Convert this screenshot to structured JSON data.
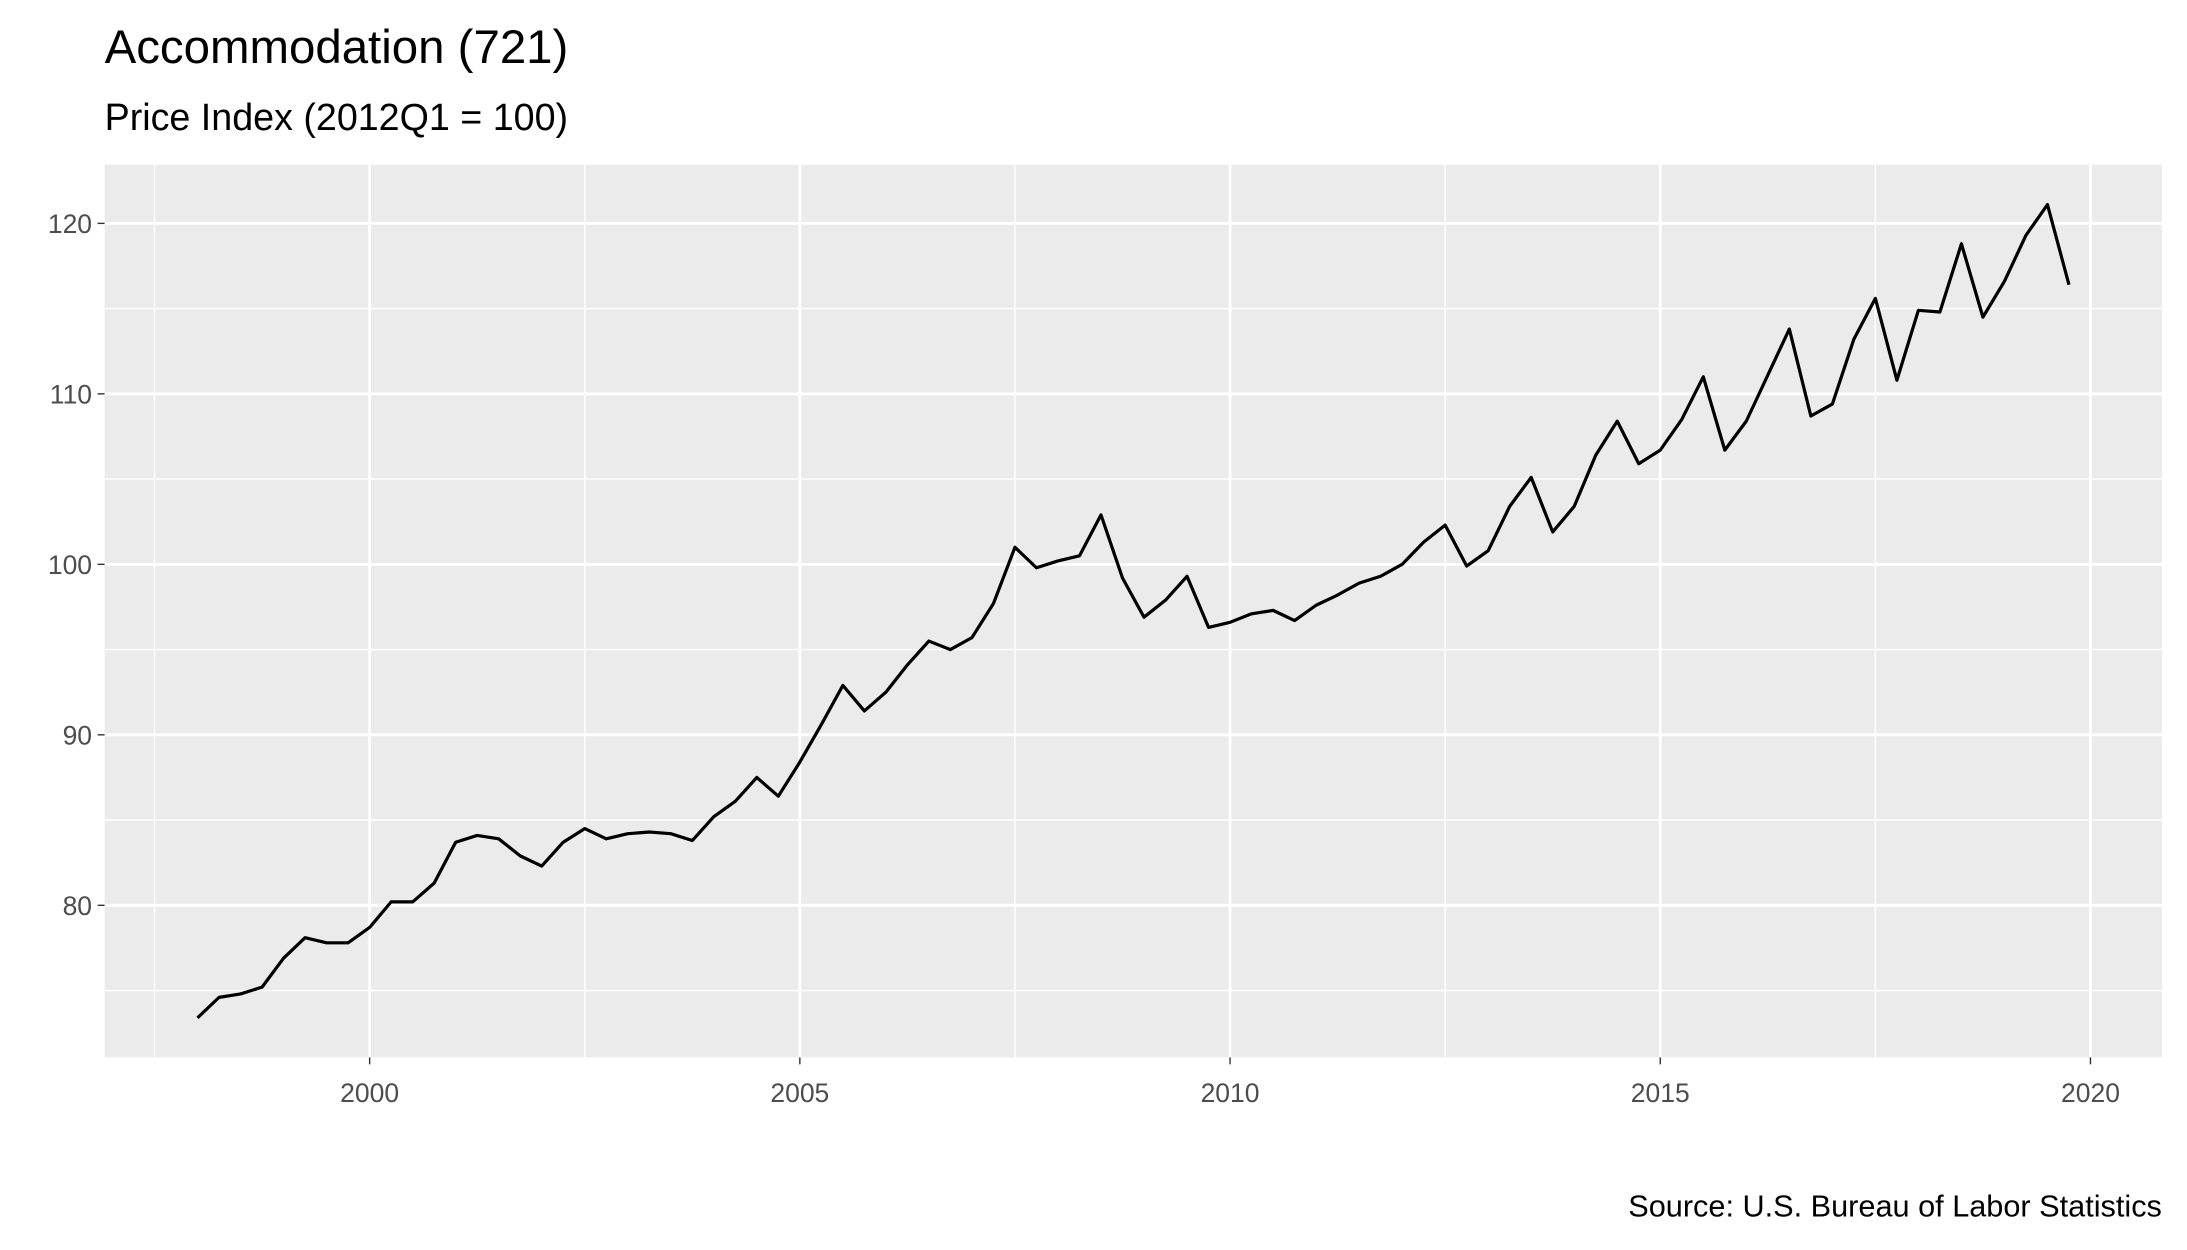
{
  "chart_data": {
    "type": "line",
    "title": "Accommodation (721)",
    "subtitle": "Price Index (2012Q1 = 100)",
    "caption": "Source: U.S. Bureau of Labor Statistics",
    "x": [
      1998.0,
      1998.25,
      1998.5,
      1998.75,
      1999.0,
      1999.25,
      1999.5,
      1999.75,
      2000.0,
      2000.25,
      2000.5,
      2000.75,
      2001.0,
      2001.25,
      2001.5,
      2001.75,
      2002.0,
      2002.25,
      2002.5,
      2002.75,
      2003.0,
      2003.25,
      2003.5,
      2003.75,
      2004.0,
      2004.25,
      2004.5,
      2004.75,
      2005.0,
      2005.25,
      2005.5,
      2005.75,
      2006.0,
      2006.25,
      2006.5,
      2006.75,
      2007.0,
      2007.25,
      2007.5,
      2007.75,
      2008.0,
      2008.25,
      2008.5,
      2008.75,
      2009.0,
      2009.25,
      2009.5,
      2009.75,
      2010.0,
      2010.25,
      2010.5,
      2010.75,
      2011.0,
      2011.25,
      2011.5,
      2011.75,
      2012.0,
      2012.25,
      2012.5,
      2012.75,
      2013.0,
      2013.25,
      2013.5,
      2013.75,
      2014.0,
      2014.25,
      2014.5,
      2014.75,
      2015.0,
      2015.25,
      2015.5,
      2015.75,
      2016.0,
      2016.25,
      2016.5,
      2016.75,
      2017.0,
      2017.25,
      2017.5,
      2017.75,
      2018.0,
      2018.25,
      2018.5,
      2018.75,
      2019.0,
      2019.25,
      2019.5,
      2019.75
    ],
    "series": [
      {
        "name": "Price Index",
        "color": "#000000",
        "values": [
          73.4,
          74.6,
          74.8,
          75.2,
          76.9,
          78.1,
          77.8,
          77.8,
          78.7,
          80.2,
          80.2,
          81.3,
          83.7,
          84.1,
          83.9,
          82.9,
          82.3,
          83.7,
          84.5,
          83.9,
          84.2,
          84.3,
          84.2,
          83.8,
          85.2,
          86.1,
          87.5,
          86.4,
          88.4,
          90.6,
          92.9,
          91.4,
          92.5,
          94.1,
          95.5,
          95.0,
          95.7,
          97.7,
          101.0,
          99.8,
          100.2,
          100.5,
          102.9,
          99.2,
          96.9,
          97.9,
          99.3,
          96.3,
          96.6,
          97.1,
          97.3,
          96.7,
          97.6,
          98.2,
          98.9,
          99.3,
          100.0,
          101.3,
          102.3,
          99.9,
          100.8,
          103.4,
          105.1,
          101.9,
          103.4,
          106.4,
          108.4,
          105.9,
          106.7,
          108.5,
          111.0,
          106.7,
          108.4,
          111.1,
          113.8,
          108.7,
          109.4,
          113.2,
          115.6,
          110.8,
          114.9,
          114.8,
          118.8,
          114.5,
          116.6,
          119.3,
          121.1,
          116.4
        ]
      }
    ],
    "xlim": [
      1996.92,
      2020.83
    ],
    "ylim": [
      71.08,
      123.44
    ],
    "xticks": [
      2000,
      2005,
      2010,
      2015,
      2020
    ],
    "yticks": [
      80,
      90,
      100,
      110,
      120
    ],
    "grid": true
  }
}
